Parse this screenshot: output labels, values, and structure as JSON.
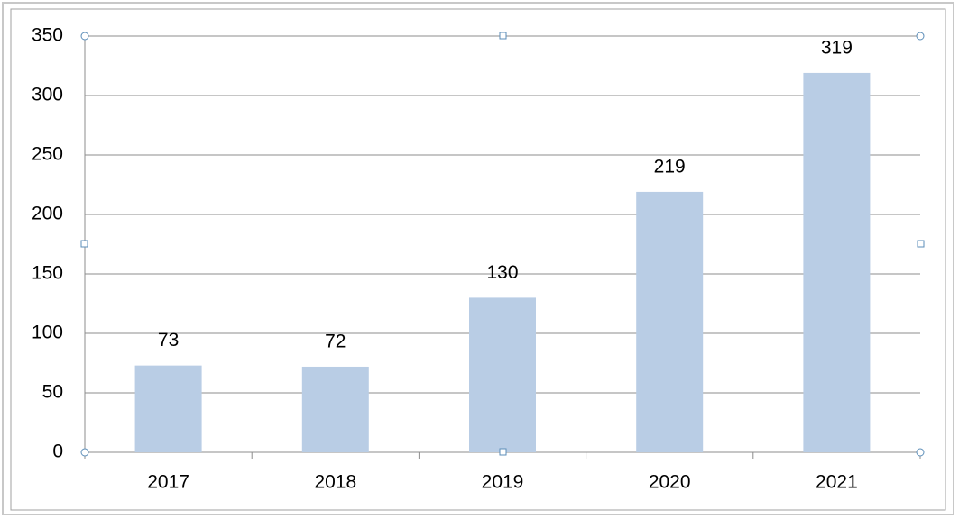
{
  "chart_data": {
    "type": "bar",
    "categories": [
      "2017",
      "2018",
      "2019",
      "2020",
      "2021"
    ],
    "values": [
      73,
      72,
      130,
      219,
      319
    ],
    "color": "#b9cde5",
    "ylim": [
      0,
      350
    ],
    "yticks": [
      0,
      50,
      100,
      150,
      200,
      250,
      300,
      350
    ],
    "grid": true
  }
}
